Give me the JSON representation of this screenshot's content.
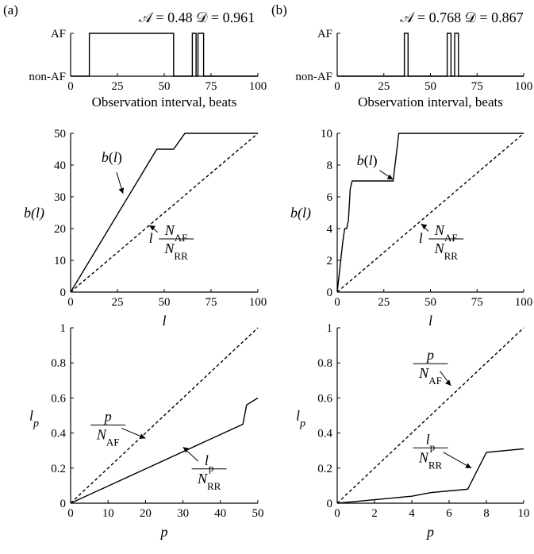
{
  "panels": [
    {
      "letter": "(a)",
      "title": "𝒜 = 0.48 𝒟 = 0.961"
    },
    {
      "letter": "(b)",
      "title": "𝒜 = 0.768 𝒟 = 0.867"
    }
  ],
  "chart_data": [
    {
      "type": "line",
      "title": "𝒜 = 0.48 𝒟 = 0.961",
      "xlabel": "Observation interval, beats",
      "ylabel": "",
      "xlim": [
        0,
        100
      ],
      "ylim": [
        0,
        1
      ],
      "xticks": [
        "0",
        "25",
        "50",
        "75",
        "100"
      ],
      "yticks": [
        "non-AF",
        "AF"
      ],
      "series": [
        {
          "style": "solid",
          "x": [
            0,
            10,
            10,
            55,
            55,
            65,
            65,
            67,
            67,
            68,
            68,
            71,
            71,
            100
          ],
          "y": [
            0,
            0,
            1,
            1,
            0,
            0,
            1,
            1,
            0,
            0,
            1,
            1,
            0,
            0
          ]
        }
      ]
    },
    {
      "type": "line",
      "title": "𝒜 = 0.768 𝒟 = 0.867",
      "xlabel": "Observation interval, beats",
      "ylabel": "",
      "xlim": [
        0,
        100
      ],
      "ylim": [
        0,
        1
      ],
      "xticks": [
        "0",
        "25",
        "50",
        "75",
        "100"
      ],
      "yticks": [
        "non-AF",
        "AF"
      ],
      "series": [
        {
          "style": "solid",
          "x": [
            0,
            36,
            36,
            38,
            38,
            59,
            59,
            61,
            61,
            63,
            63,
            65,
            65,
            100
          ],
          "y": [
            0,
            0,
            1,
            1,
            0,
            0,
            1,
            1,
            0,
            0,
            1,
            1,
            0,
            0
          ]
        }
      ]
    },
    {
      "type": "line",
      "xlabel": "l",
      "ylabel": "b(l)",
      "xlim": [
        0,
        100
      ],
      "ylim": [
        0,
        50
      ],
      "xticks": [
        "0",
        "25",
        "50",
        "75",
        "100"
      ],
      "yticks": [
        "0",
        "10",
        "20",
        "30",
        "40",
        "50"
      ],
      "series": [
        {
          "name": "b(l)",
          "style": "solid",
          "x": [
            0,
            46,
            55,
            61,
            100
          ],
          "y": [
            0,
            45,
            45,
            50,
            50
          ]
        },
        {
          "name": "l N_AF/N_RR",
          "style": "dashed",
          "x": [
            0,
            100
          ],
          "y": [
            0,
            50
          ]
        }
      ],
      "annotations": [
        {
          "text": "b(l)",
          "x": 22,
          "y": 41,
          "arrow_to": [
            28,
            31
          ]
        },
        {
          "text": "l N_AF/N_RR",
          "x": 53,
          "y": 17,
          "arrow_to": [
            42,
            21
          ]
        }
      ]
    },
    {
      "type": "line",
      "xlabel": "l",
      "ylabel": "b(l)",
      "xlim": [
        0,
        100
      ],
      "ylim": [
        0,
        10
      ],
      "xticks": [
        "0",
        "25",
        "50",
        "75",
        "100"
      ],
      "yticks": [
        "0",
        "2",
        "4",
        "6",
        "8",
        "10"
      ],
      "series": [
        {
          "name": "b(l)",
          "style": "solid",
          "x": [
            0,
            3,
            4,
            5,
            6,
            7,
            8,
            30,
            33,
            100
          ],
          "y": [
            0,
            3.2,
            4,
            4,
            4.5,
            6.5,
            7,
            7,
            10,
            10
          ]
        },
        {
          "name": "l N_AF/N_RR",
          "style": "dashed",
          "x": [
            0,
            100
          ],
          "y": [
            0,
            10
          ]
        }
      ],
      "annotations": [
        {
          "text": "b(l)",
          "x": 16,
          "y": 8.0,
          "arrow_to": [
            30,
            7.1
          ]
        },
        {
          "text": "l N_AF/N_RR",
          "x": 55,
          "y": 3.4,
          "arrow_to": [
            45,
            4.3
          ]
        }
      ]
    },
    {
      "type": "line",
      "xlabel": "p",
      "ylabel": "l_p",
      "xlim": [
        0,
        50
      ],
      "ylim": [
        0,
        1
      ],
      "xticks": [
        "0",
        "10",
        "20",
        "30",
        "40",
        "50"
      ],
      "yticks": [
        "0",
        "0.2",
        "0.4",
        "0.6",
        "0.8",
        "1"
      ],
      "series": [
        {
          "name": "p/N_AF",
          "style": "dashed",
          "x": [
            0,
            50
          ],
          "y": [
            0,
            1
          ]
        },
        {
          "name": "l_p/N_RR",
          "style": "solid",
          "x": [
            0,
            46,
            47,
            50
          ],
          "y": [
            0,
            0.45,
            0.56,
            0.6
          ]
        }
      ],
      "annotations": [
        {
          "text": "p/N_AF",
          "x": 10,
          "y": 0.45,
          "arrow_to": [
            20,
            0.37
          ]
        },
        {
          "text": "l_p/N_RR",
          "x": 37,
          "y": 0.2,
          "arrow_to": [
            30,
            0.32
          ]
        }
      ]
    },
    {
      "type": "line",
      "xlabel": "p",
      "ylabel": "l_p",
      "xlim": [
        0,
        10
      ],
      "ylim": [
        0,
        1
      ],
      "xticks": [
        "0",
        "2",
        "4",
        "6",
        "8",
        "10"
      ],
      "yticks": [
        "0",
        "0.2",
        "0.4",
        "0.6",
        "0.8",
        "1"
      ],
      "series": [
        {
          "name": "p/N_AF",
          "style": "dashed",
          "x": [
            0,
            10
          ],
          "y": [
            0,
            1
          ]
        },
        {
          "name": "l_p/N_RR",
          "style": "solid",
          "x": [
            0,
            1,
            2,
            3,
            4,
            5,
            6,
            7,
            8,
            10
          ],
          "y": [
            0,
            0.01,
            0.02,
            0.03,
            0.04,
            0.06,
            0.07,
            0.08,
            0.29,
            0.31
          ]
        }
      ],
      "annotations": [
        {
          "text": "p/N_AF",
          "x": 5,
          "y": 0.8,
          "arrow_to": [
            6.1,
            0.67
          ]
        },
        {
          "text": "l_p/N_RR",
          "x": 5,
          "y": 0.32,
          "arrow_to": [
            7.2,
            0.2
          ]
        }
      ]
    }
  ]
}
